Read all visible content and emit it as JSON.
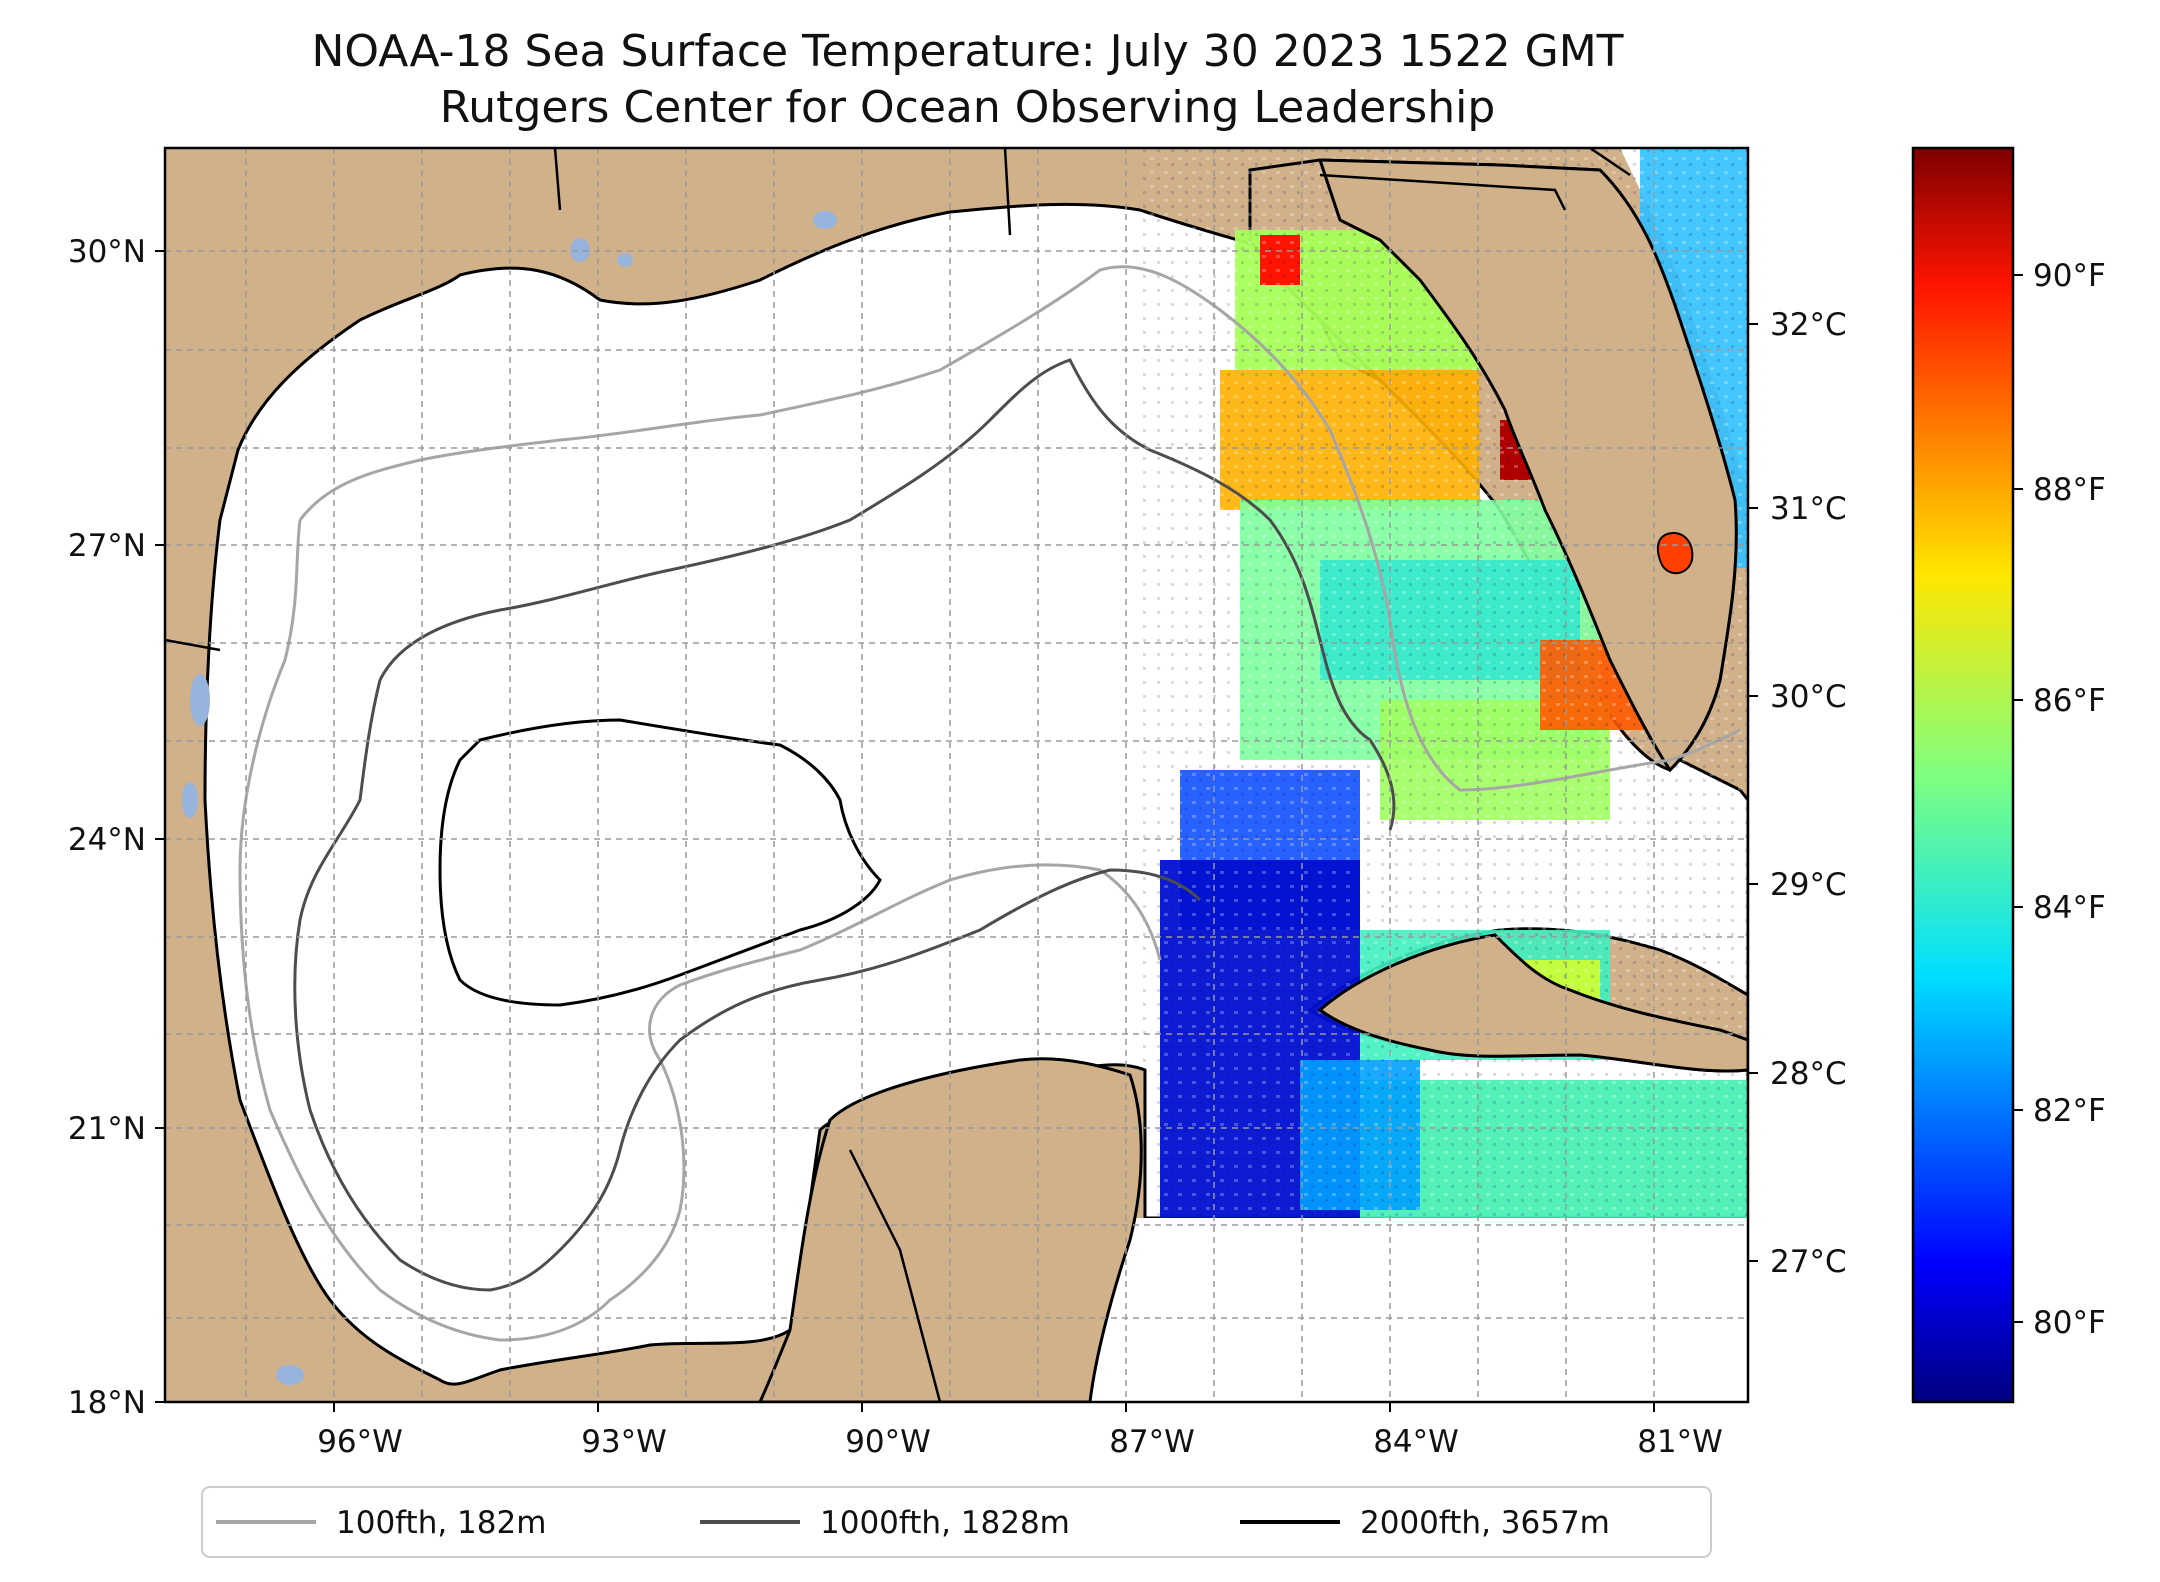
{
  "title_line1": "NOAA-18 Sea Surface Temperature: July 30 2023 1522 GMT",
  "title_line2": "Rutgers Center for Ocean Observing Leadership",
  "axes": {
    "lat_ticks": [
      "30°N",
      "27°N",
      "24°N",
      "21°N",
      "18°N"
    ],
    "lon_ticks": [
      "96°W",
      "93°W",
      "90°W",
      "87°W",
      "84°W",
      "81°W"
    ]
  },
  "colorbar": {
    "celsius_ticks": [
      "32°C",
      "31°C",
      "30°C",
      "29°C",
      "28°C",
      "27°C"
    ],
    "fahrenheit_ticks": [
      "90°F",
      "88°F",
      "86°F",
      "84°F",
      "82°F",
      "80°F"
    ],
    "colormap": "jet"
  },
  "legend": {
    "items": [
      {
        "label": "100fth, 182m",
        "color": "#a6a6a6"
      },
      {
        "label": "1000fth, 1828m",
        "color": "#4d4d4d"
      },
      {
        "label": "2000fth, 3657m",
        "color": "#000000"
      }
    ]
  },
  "colors": {
    "land": "#d0b18a",
    "water_bodies": "#97b4dd",
    "ocean_no_data": "#ffffff"
  }
}
